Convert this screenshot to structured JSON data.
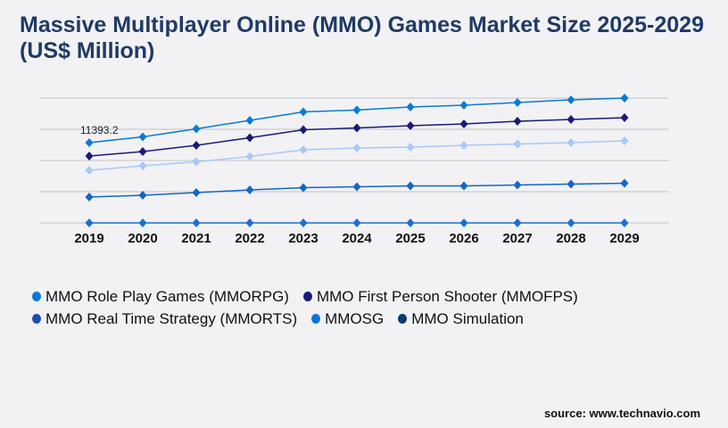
{
  "chart_data": {
    "type": "line",
    "title": "Massive Multiplayer Online (MMO) Games Market Size 2025-2029 (US$ Million)",
    "x": [
      "2019",
      "2020",
      "2021",
      "2022",
      "2023",
      "2024",
      "2025",
      "2026",
      "2027",
      "2028",
      "2029"
    ],
    "series": [
      {
        "name": "MMO Role Play Games (MMORPG)",
        "color": "#0a7ad6",
        "values": [
          11393.2,
          12220,
          13360,
          14560,
          15760,
          16020,
          16460,
          16710,
          17090,
          17470,
          17720
        ]
      },
      {
        "name": "MMO First Person Shooter (MMOFPS)",
        "color": "#1a1a7a",
        "values": [
          9490,
          10130,
          11010,
          12090,
          13230,
          13480,
          13800,
          14050,
          14430,
          14690,
          14940
        ]
      },
      {
        "name": "MMO Real Time Strategy (MMORTS)",
        "color": "#a8c8f8",
        "values": [
          7470,
          8100,
          8670,
          9430,
          10380,
          10630,
          10760,
          11010,
          11200,
          11390,
          11650
        ]
      },
      {
        "name": "MMOSG",
        "color": "#1565c8",
        "values": [
          3670,
          3930,
          4300,
          4680,
          5000,
          5130,
          5250,
          5250,
          5380,
          5510,
          5630
        ]
      },
      {
        "name": "MMO Simulation",
        "color": "#1a6fd0",
        "values": [
          0,
          0,
          0,
          0,
          0,
          0,
          0,
          0,
          0,
          0,
          0
        ]
      }
    ],
    "legend_colors": [
      "#0a7ad6",
      "#1a1a7a",
      "#1f4fae",
      "#0a74d6",
      "#0a3a6e"
    ],
    "data_labels": [
      {
        "series": 0,
        "index": 0,
        "text": "11393.2"
      }
    ],
    "ylim": [
      0,
      17720
    ],
    "grid": true,
    "legend_position": "bottom"
  },
  "source": "source: www.technavio.com"
}
